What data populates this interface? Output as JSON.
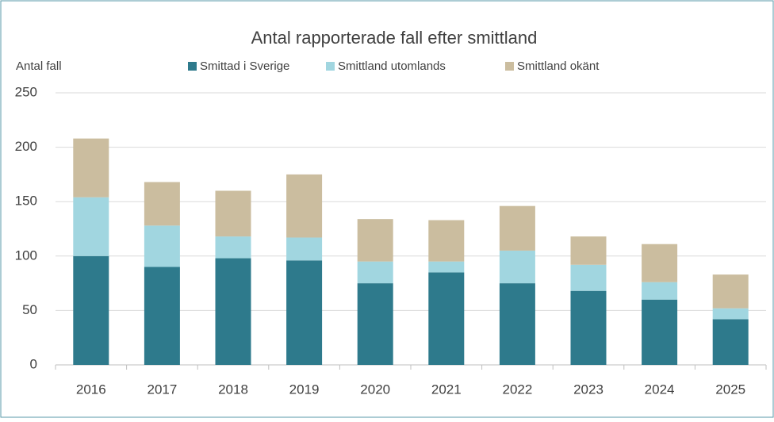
{
  "chart_data": {
    "type": "stacked_bar",
    "title": "Antal rapporterade fall efter smittland",
    "y_label": "Antal fall",
    "categories": [
      "2016",
      "2017",
      "2018",
      "2019",
      "2020",
      "2021",
      "2022",
      "2023",
      "2024",
      "2025"
    ],
    "series": [
      {
        "name": "Smittad i Sverige",
        "color": "#2e7a8c",
        "values": [
          100,
          90,
          98,
          96,
          75,
          85,
          75,
          68,
          60,
          42
        ]
      },
      {
        "name": "Smittland utomlands",
        "color": "#a1d6e0",
        "values": [
          54,
          38,
          20,
          21,
          20,
          10,
          30,
          24,
          16,
          10
        ]
      },
      {
        "name": "Smittland okänt",
        "color": "#cbbd9f",
        "values": [
          54,
          40,
          42,
          58,
          39,
          38,
          41,
          26,
          35,
          31
        ]
      }
    ],
    "ylim": [
      0,
      250
    ],
    "yticks": [
      0,
      50,
      100,
      150,
      200,
      250
    ],
    "grid": true,
    "legend": "top"
  }
}
